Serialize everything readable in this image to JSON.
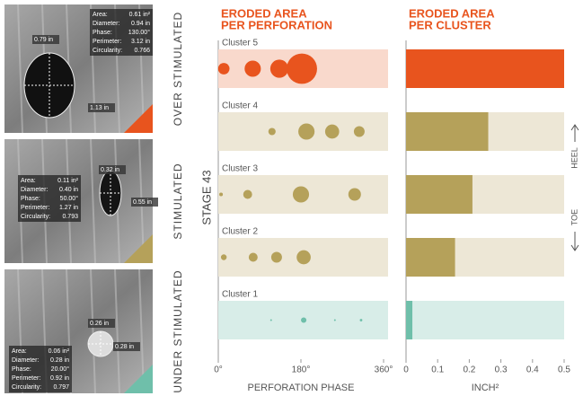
{
  "stage_label": "STAGE 43",
  "heel_label": "HEEL",
  "toe_label": "TOE",
  "panels": [
    {
      "status": "OVER STIMULATED",
      "color": "#e8541e",
      "dims": [
        "0.79 in",
        "1.13 in"
      ],
      "fields": [
        {
          "label": "Area:",
          "value": "0.61 in²"
        },
        {
          "label": "Diameter:",
          "value": "0.94 in"
        },
        {
          "label": "Phase:",
          "value": "130.00°"
        },
        {
          "label": "Perimeter:",
          "value": "3.12 in"
        },
        {
          "label": "Circularity:",
          "value": "0.766"
        }
      ]
    },
    {
      "status": "STIMULATED",
      "color": "#b5a15a",
      "dims": [
        "0.32 in",
        "0.55 in"
      ],
      "fields": [
        {
          "label": "Area:",
          "value": "0.11 in²"
        },
        {
          "label": "Diameter:",
          "value": "0.40 in"
        },
        {
          "label": "Phase:",
          "value": "50.00°"
        },
        {
          "label": "Perimeter:",
          "value": "1.27 in"
        },
        {
          "label": "Circularity:",
          "value": "0.793"
        }
      ]
    },
    {
      "status": "UNDER STIMULATED",
      "color": "#6fbfaa",
      "dims": [
        "0.26 in",
        "0.28 in"
      ],
      "fields": [
        {
          "label": "Area:",
          "value": "0.06 in²"
        },
        {
          "label": "Diameter:",
          "value": "0.28 in"
        },
        {
          "label": "Phase:",
          "value": "20.00°"
        },
        {
          "label": "Perimeter:",
          "value": "0.92 in"
        },
        {
          "label": "Circularity:",
          "value": "0.797"
        }
      ]
    }
  ],
  "chart_data": [
    {
      "type": "bubble",
      "title": [
        "ERODED AREA",
        "PER PERFORATION"
      ],
      "x_label": "PERFORATION PHASE",
      "xlim": [
        0,
        360
      ],
      "xticks": [
        {
          "value": 0,
          "label": "0°"
        },
        {
          "value": 180,
          "label": "180°"
        },
        {
          "value": 360,
          "label": "360°"
        }
      ],
      "series": [
        {
          "name": "Cluster 5",
          "color": "#e8541e",
          "band_color": "#f9d9cc",
          "x": [
            12,
            75,
            133,
            182
          ],
          "values": [
            0.04,
            0.08,
            0.1,
            0.28
          ]
        },
        {
          "name": "Cluster 4",
          "color": "#b5a15a",
          "band_color": "#ede7d6",
          "x": [
            117,
            192,
            248,
            307
          ],
          "values": [
            0.016,
            0.08,
            0.06,
            0.035
          ]
        },
        {
          "name": "Cluster 3",
          "color": "#b5a15a",
          "band_color": "#ede7d6",
          "x": [
            6,
            64,
            180,
            297
          ],
          "values": [
            0.004,
            0.024,
            0.08,
            0.048
          ]
        },
        {
          "name": "Cluster 2",
          "color": "#b5a15a",
          "band_color": "#ede7d6",
          "x": [
            12,
            76,
            127,
            186
          ],
          "values": [
            0.01,
            0.024,
            0.035,
            0.06
          ]
        },
        {
          "name": "Cluster 1",
          "color": "#6fbfaa",
          "band_color": "#d8ede8",
          "x": [
            115,
            186,
            254,
            311
          ],
          "values": [
            0.001,
            0.009,
            0.001,
            0.002
          ]
        }
      ]
    },
    {
      "type": "hbar",
      "title": [
        "ERODED AREA",
        "PER CLUSTER"
      ],
      "x_label": "INCH²",
      "xlim": [
        0,
        0.5
      ],
      "xticks": [
        0,
        0.1,
        0.2,
        0.3,
        0.4,
        0.5
      ],
      "values": [
        0.5,
        0.26,
        0.21,
        0.155,
        0.02
      ],
      "colors": [
        "#e8541e",
        "#b5a15a",
        "#b5a15a",
        "#b5a15a",
        "#6fbfaa"
      ],
      "band_colors": [
        "#f9d9cc",
        "#ede7d6",
        "#ede7d6",
        "#ede7d6",
        "#d8ede8"
      ]
    }
  ]
}
